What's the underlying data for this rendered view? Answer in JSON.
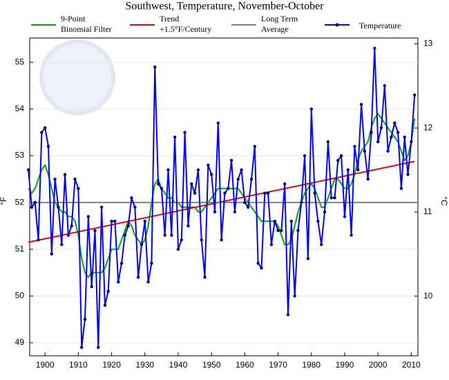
{
  "chart_data": {
    "type": "line",
    "title": "Southwest, Temperature, November-October",
    "ylabel": "°F",
    "y2label": "°C",
    "xlim": [
      1895.4,
      2012
    ],
    "xticks": [
      1900,
      1910,
      1920,
      1930,
      1940,
      1950,
      1960,
      1970,
      1980,
      1990,
      2000,
      2010
    ],
    "ylim": [
      48.72,
      55.52
    ],
    "yticks": [
      49,
      50,
      51,
      52,
      53,
      54,
      55
    ],
    "y2lim": [
      9.29,
      13.07
    ],
    "y2ticks": [
      10,
      11,
      12,
      13
    ],
    "grid": true,
    "x": [
      1895,
      1896,
      1897,
      1898,
      1899,
      1900,
      1901,
      1902,
      1903,
      1904,
      1905,
      1906,
      1907,
      1908,
      1909,
      1910,
      1911,
      1912,
      1913,
      1914,
      1915,
      1916,
      1917,
      1918,
      1919,
      1920,
      1921,
      1922,
      1923,
      1924,
      1925,
      1926,
      1927,
      1928,
      1929,
      1930,
      1931,
      1932,
      1933,
      1934,
      1935,
      1936,
      1937,
      1938,
      1939,
      1940,
      1941,
      1942,
      1943,
      1944,
      1945,
      1946,
      1947,
      1948,
      1949,
      1950,
      1951,
      1952,
      1953,
      1954,
      1955,
      1956,
      1957,
      1958,
      1959,
      1960,
      1961,
      1962,
      1963,
      1964,
      1965,
      1966,
      1967,
      1968,
      1969,
      1970,
      1971,
      1972,
      1973,
      1974,
      1975,
      1976,
      1977,
      1978,
      1979,
      1980,
      1981,
      1982,
      1983,
      1984,
      1985,
      1986,
      1987,
      1988,
      1989,
      1990,
      1991,
      1992,
      1993,
      1994,
      1995,
      1996,
      1997,
      1998,
      1999,
      2000,
      2001,
      2002,
      2003,
      2004,
      2005,
      2006,
      2007,
      2008,
      2009,
      2010,
      2011
    ],
    "series": [
      {
        "name": [
          "9-Point",
          "Binomial Filter"
        ],
        "color": "#00a800",
        "markers": false,
        "values": [
          52.3,
          52.2,
          52.3,
          52.5,
          52.7,
          52.8,
          52.6,
          52.3,
          52.0,
          51.9,
          51.8,
          51.8,
          51.7,
          51.7,
          51.6,
          51.3,
          50.8,
          50.5,
          50.4,
          50.5,
          50.5,
          50.5,
          50.5,
          50.6,
          50.8,
          51.0,
          51.0,
          51.0,
          51.2,
          51.4,
          51.6,
          51.5,
          51.3,
          51.2,
          51.1,
          51.2,
          51.5,
          52.0,
          52.4,
          52.5,
          52.3,
          52.2,
          52.1,
          52.1,
          52.0,
          52.0,
          51.9,
          51.9,
          51.9,
          51.9,
          51.9,
          51.8,
          51.8,
          51.9,
          52.0,
          52.1,
          52.2,
          52.3,
          52.3,
          52.3,
          52.3,
          52.3,
          52.3,
          52.3,
          52.2,
          52.1,
          52.0,
          51.9,
          51.8,
          51.7,
          51.6,
          51.6,
          51.6,
          51.6,
          51.6,
          51.5,
          51.3,
          51.1,
          51.1,
          51.2,
          51.5,
          51.8,
          52.0,
          52.2,
          52.3,
          52.4,
          52.3,
          52.1,
          51.9,
          51.9,
          52.1,
          52.3,
          52.5,
          52.5,
          52.4,
          52.3,
          52.3,
          52.4,
          52.6,
          52.9,
          53.1,
          53.2,
          53.3,
          53.6,
          53.8,
          53.9,
          53.8,
          53.7,
          53.6,
          53.5,
          53.4,
          53.3,
          53.1,
          52.9,
          53.0,
          53.3,
          53.8
        ]
      },
      {
        "name": [
          "Trend",
          "+1.5°F/Century"
        ],
        "color": "#ee0000",
        "markers": false,
        "x": [
          1895,
          2011
        ],
        "values": [
          51.15,
          52.88
        ]
      },
      {
        "name": [
          "Long Term",
          "Average"
        ],
        "color": "#808080",
        "markers": false,
        "x": [
          1895.4,
          2012
        ],
        "values": [
          52.0,
          52.0
        ]
      },
      {
        "name": [
          "Temperature"
        ],
        "color": "#0000ff",
        "marker_color": "#000070",
        "markers": true,
        "values": [
          52.7,
          51.9,
          52.0,
          51.2,
          53.5,
          53.6,
          53.2,
          50.9,
          52.5,
          51.9,
          51.1,
          52.6,
          51.3,
          51.5,
          52.5,
          52.3,
          48.9,
          49.5,
          51.7,
          50.2,
          51.4,
          48.9,
          51.9,
          49.8,
          50.1,
          51.6,
          51.6,
          50.3,
          50.7,
          51.3,
          51.5,
          52.1,
          51.9,
          50.4,
          51.1,
          51.6,
          50.3,
          50.7,
          54.9,
          52.4,
          52.3,
          51.3,
          52.7,
          51.3,
          53.4,
          51.0,
          51.2,
          53.5,
          51.5,
          52.4,
          52.2,
          52.7,
          51.2,
          50.4,
          52.8,
          52.6,
          51.8,
          53.7,
          51.2,
          52.2,
          52.3,
          52.9,
          51.8,
          52.5,
          52.7,
          52.0,
          51.9,
          52.5,
          53.2,
          50.7,
          50.6,
          52.2,
          52.2,
          51.1,
          51.6,
          51.4,
          51.4,
          52.4,
          49.6,
          51.6,
          50.0,
          51.4,
          52.0,
          53.0,
          50.8,
          54.0,
          52.2,
          51.6,
          51.1,
          51.8,
          53.3,
          52.1,
          52.1,
          52.9,
          53.0,
          51.7,
          52.7,
          51.3,
          53.2,
          52.7,
          54.1,
          53.1,
          52.5,
          53.5,
          55.3,
          53.3,
          53.6,
          54.5,
          53.1,
          53.4,
          53.7,
          53.5,
          52.3,
          53.4,
          52.6,
          53.3,
          54.3
        ]
      }
    ]
  }
}
